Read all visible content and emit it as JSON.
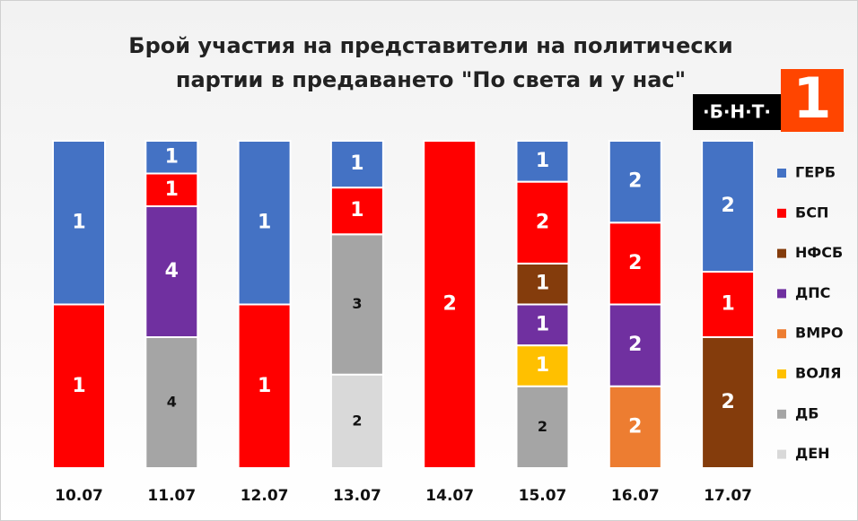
{
  "chart_data": {
    "type": "bar",
    "stacked": true,
    "normalized": true,
    "title": [
      "Брой участия на представители на политически",
      "партии в предаването \"По света и у нас\""
    ],
    "logo": {
      "text": "·Б·Н·Т·",
      "number": "1"
    },
    "categories": [
      "10.07",
      "11.07",
      "12.07",
      "13.07",
      "14.07",
      "15.07",
      "16.07",
      "17.07"
    ],
    "series": [
      {
        "name": "ГЕРБ",
        "color": "#4472c4",
        "values": [
          1,
          1,
          1,
          1,
          null,
          1,
          2,
          2
        ]
      },
      {
        "name": "БСП",
        "color": "#ff0000",
        "values": [
          1,
          1,
          1,
          1,
          2,
          2,
          2,
          1
        ]
      },
      {
        "name": "НФСБ",
        "color": "#843c0c",
        "values": [
          null,
          null,
          null,
          null,
          null,
          1,
          null,
          2
        ]
      },
      {
        "name": "ДПС",
        "color": "#7030a0",
        "values": [
          null,
          4,
          null,
          null,
          null,
          1,
          2,
          null
        ]
      },
      {
        "name": "ВМРО",
        "color": "#ed7d31",
        "values": [
          null,
          null,
          null,
          null,
          null,
          null,
          2,
          null
        ]
      },
      {
        "name": "ВОЛЯ",
        "color": "#ffc000",
        "values": [
          null,
          null,
          null,
          null,
          null,
          1,
          null,
          null
        ]
      },
      {
        "name": "ДБ",
        "color": "#a5a5a5",
        "values": [
          null,
          4,
          null,
          3,
          null,
          2,
          null,
          null
        ]
      },
      {
        "name": "ДЕН",
        "color": "#d9d9d9",
        "values": [
          null,
          null,
          null,
          2,
          null,
          null,
          null,
          null
        ]
      }
    ],
    "legend": "right"
  }
}
